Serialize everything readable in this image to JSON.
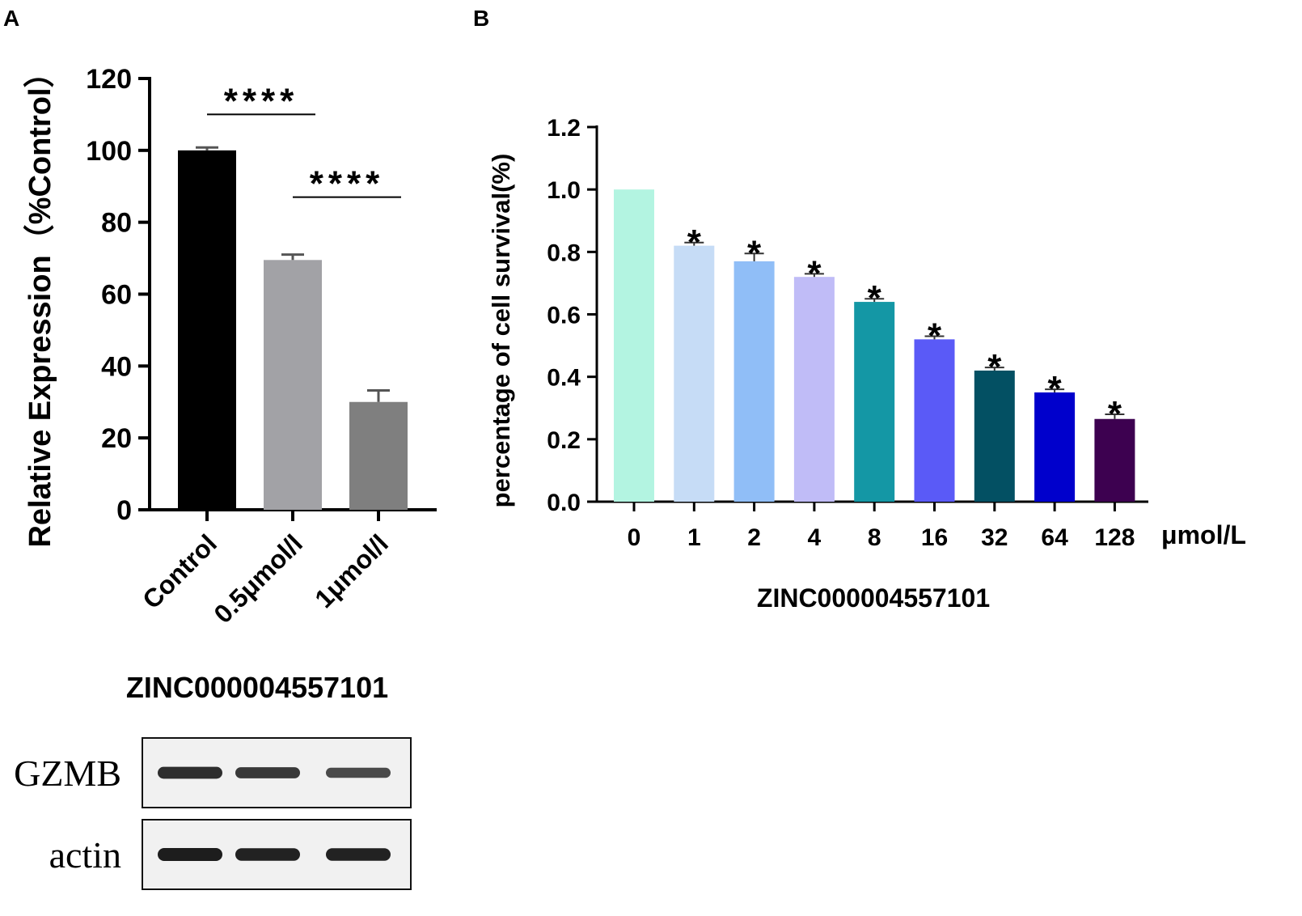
{
  "panels": {
    "a_label": "A",
    "b_label": "B"
  },
  "chart_data": [
    {
      "type": "bar",
      "panel": "A",
      "categories": [
        "Control",
        "0.5μmol/l",
        "1μmol/l"
      ],
      "values": [
        100,
        69.5,
        30
      ],
      "errors": [
        0.8,
        1.5,
        3.2
      ],
      "colors": [
        "#000000",
        "#a2a2a6",
        "#7f7f7f"
      ],
      "ylabel": "Relative Expression（%Control）",
      "xlabel": "ZINC000004557101",
      "ylim": [
        0,
        120
      ],
      "yticks": [
        0,
        20,
        40,
        60,
        80,
        100,
        120
      ],
      "significance": [
        {
          "from": 0,
          "to": 1,
          "label": "****",
          "y": 110
        },
        {
          "from": 1,
          "to": 2,
          "label": "****",
          "y": 87
        }
      ],
      "blot": {
        "rows": [
          {
            "label": "GZMB",
            "intensity": [
              0.85,
              0.75,
              0.6
            ]
          },
          {
            "label": "actin",
            "intensity": [
              1.0,
              0.95,
              0.95
            ]
          }
        ]
      }
    },
    {
      "type": "bar",
      "panel": "B",
      "categories": [
        "0",
        "1",
        "2",
        "4",
        "8",
        "16",
        "32",
        "64",
        "128"
      ],
      "values": [
        1.0,
        0.82,
        0.77,
        0.72,
        0.64,
        0.52,
        0.42,
        0.35,
        0.265
      ],
      "errors": [
        0,
        0.01,
        0.025,
        0.01,
        0.01,
        0.01,
        0.01,
        0.01,
        0.015
      ],
      "colors": [
        "#b3f4e1",
        "#c6dcf6",
        "#90bef7",
        "#c0bcf7",
        "#1497a5",
        "#5a5af7",
        "#035063",
        "#0000cc",
        "#3d0150"
      ],
      "annotations": [
        "",
        "*",
        "*",
        "*",
        "*",
        "*",
        "*",
        "*",
        "*"
      ],
      "ylabel": "percentage of cell survival(%)",
      "xlabel": "ZINC000004557101",
      "unit_label": "μmol/L",
      "ylim": [
        0,
        1.2
      ],
      "yticks": [
        0.0,
        0.2,
        0.4,
        0.6,
        0.8,
        1.0,
        1.2
      ]
    }
  ]
}
